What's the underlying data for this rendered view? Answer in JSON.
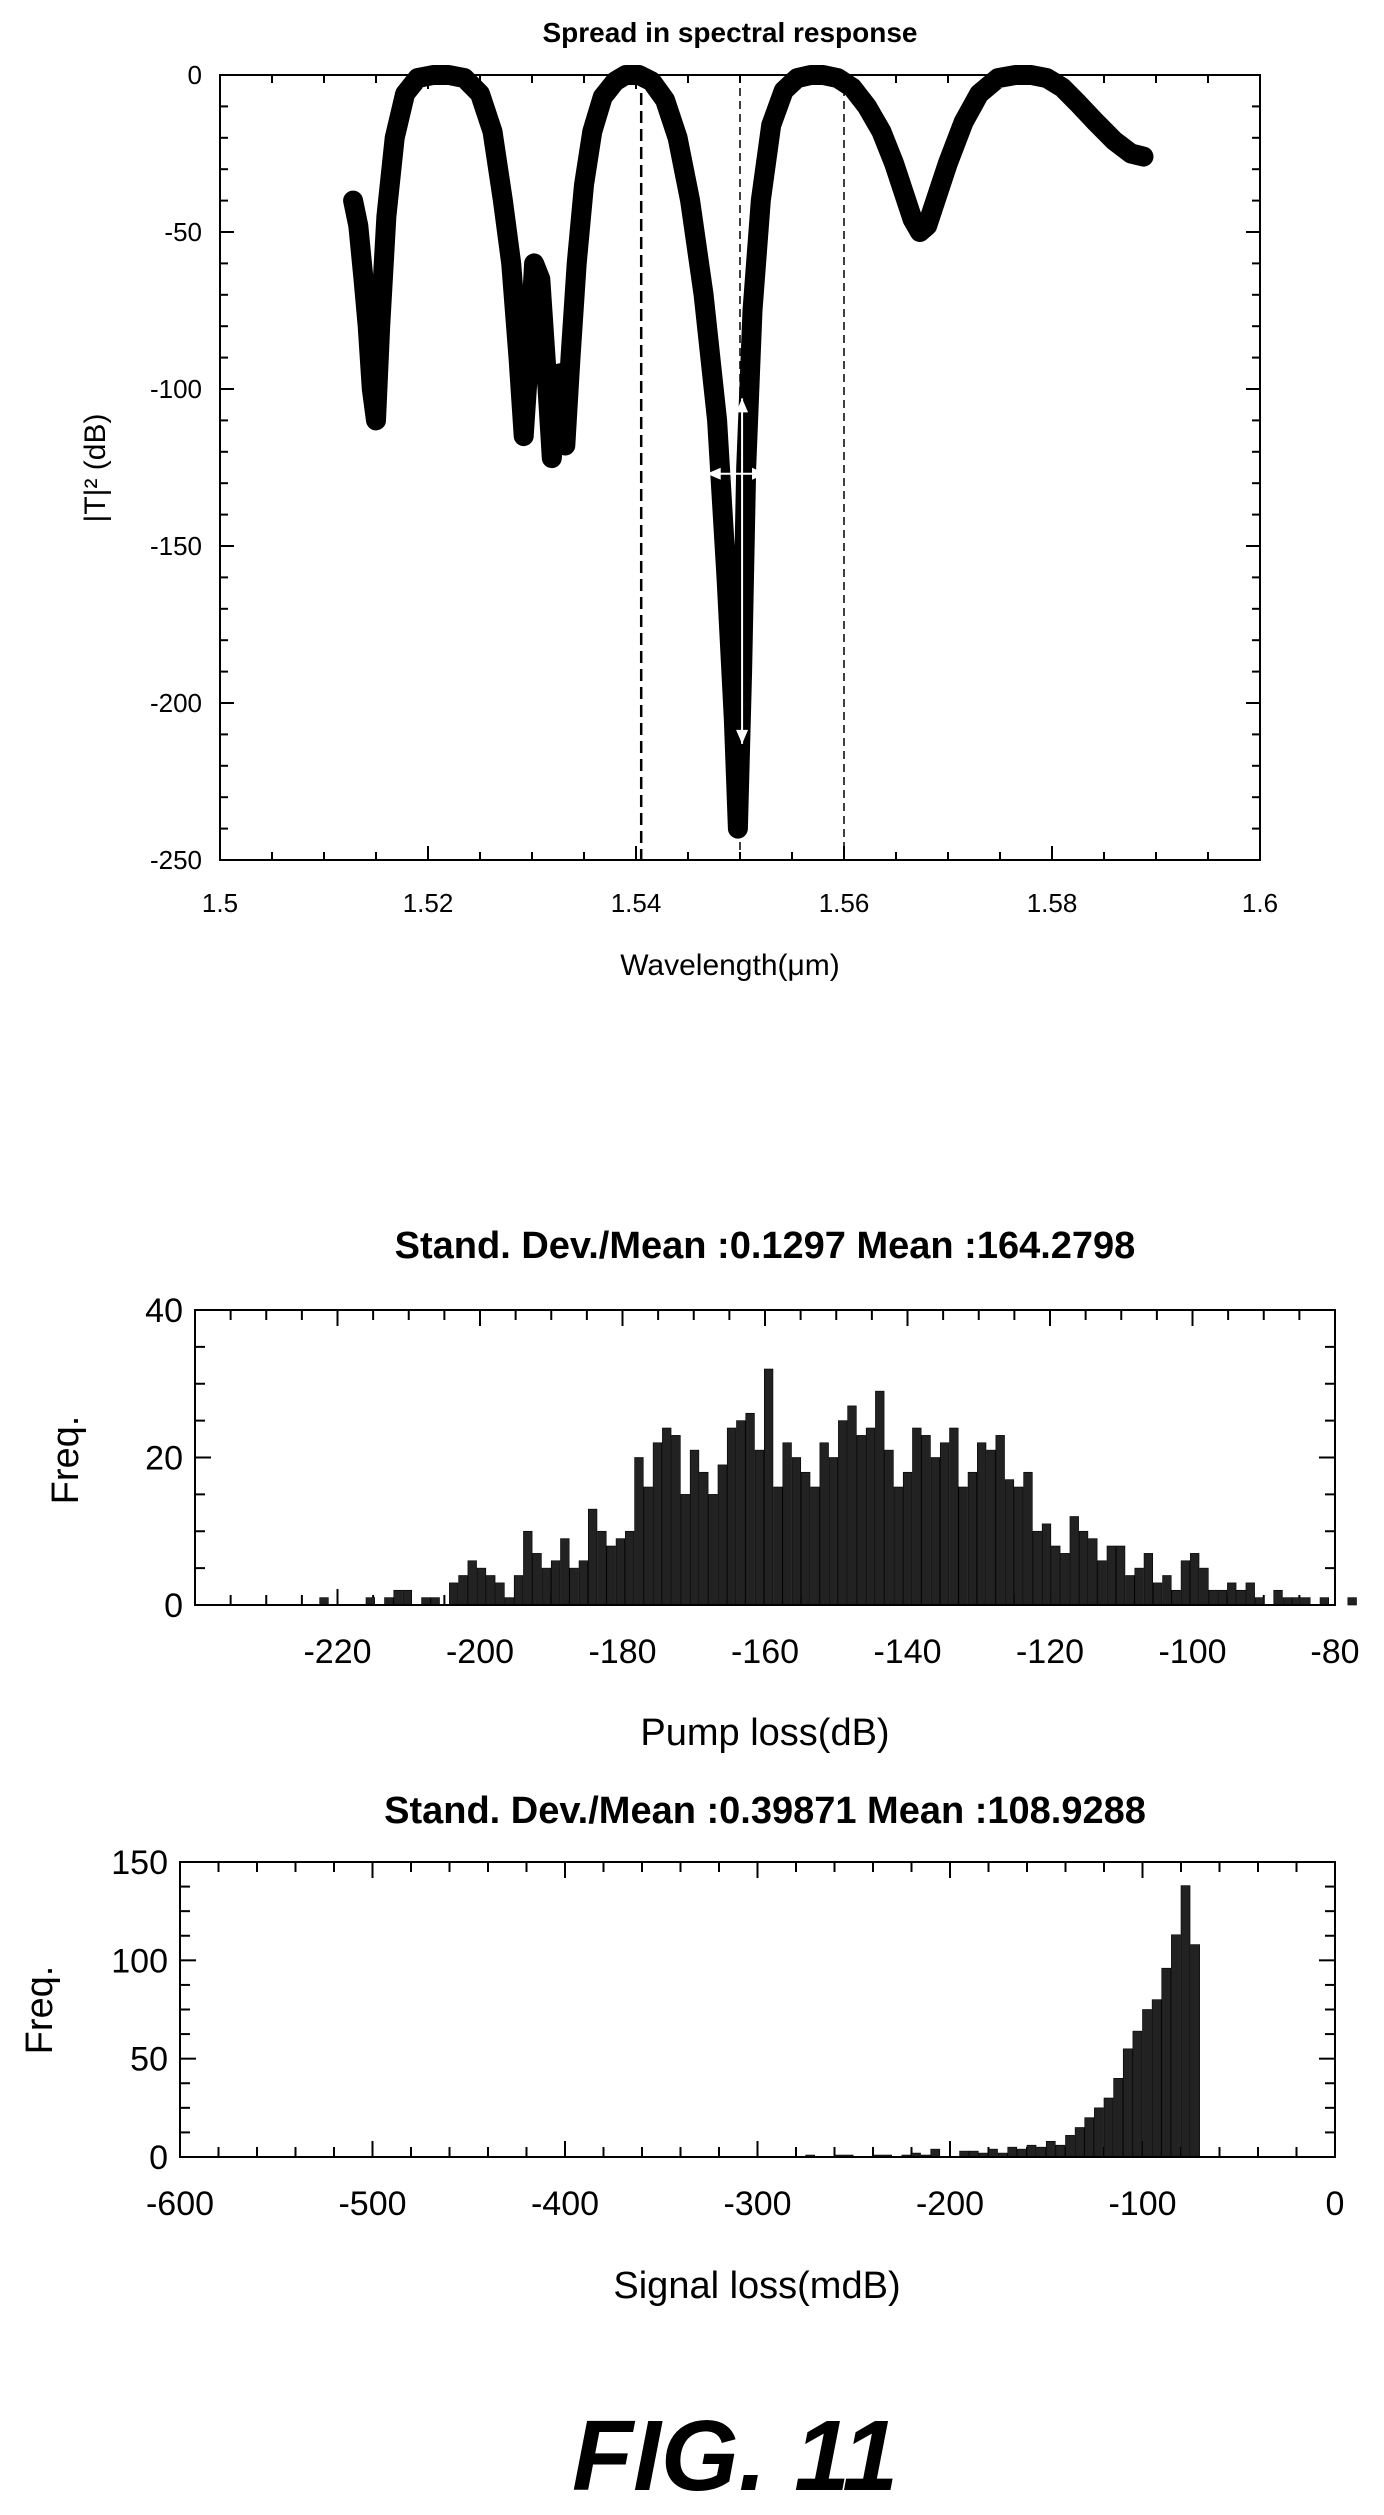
{
  "figure_label": "FIG. 11",
  "chart_data": [
    {
      "type": "line",
      "title": "Spread in spectral response",
      "xlabel": "Wavelength(μm)",
      "ylabel": "|T|² (dB)",
      "xlim": [
        1.5,
        1.6
      ],
      "ylim": [
        -250,
        0
      ],
      "xticks": [
        1.5,
        1.52,
        1.54,
        1.56,
        1.58,
        1.6
      ],
      "yticks": [
        0,
        -50,
        -100,
        -150,
        -200,
        -250
      ],
      "xtick_labels": [
        "1.5",
        "1.52",
        "1.54",
        "1.56",
        "1.58",
        "1.6"
      ],
      "ytick_labels": [
        "0",
        "-50",
        "-100",
        "-150",
        "-200",
        "-250"
      ],
      "grid": false,
      "series": [
        {
          "x": [
            1.5128,
            1.5133,
            1.5138,
            1.5142,
            1.5146,
            1.515,
            1.5154,
            1.516,
            1.5168,
            1.5178,
            1.519,
            1.5205,
            1.522,
            1.5235,
            1.525,
            1.5262,
            1.5272,
            1.528,
            1.5287,
            1.5292,
            1.5297,
            1.5302,
            1.5308,
            1.5314,
            1.5319,
            1.5323,
            1.5327,
            1.5332,
            1.5337,
            1.5343,
            1.535,
            1.5358,
            1.5368,
            1.538,
            1.539,
            1.5403,
            1.5415,
            1.5428,
            1.544,
            1.5452,
            1.5465,
            1.5478,
            1.5487,
            1.5494,
            1.5498,
            1.5502,
            1.5506,
            1.5512,
            1.552,
            1.553,
            1.5542,
            1.5555,
            1.5568,
            1.558,
            1.5594,
            1.5608,
            1.5622,
            1.5636,
            1.5648,
            1.5658,
            1.5666,
            1.5673,
            1.568,
            1.5688,
            1.57,
            1.5715,
            1.573,
            1.5748,
            1.5765,
            1.578,
            1.5795,
            1.581,
            1.5825,
            1.5842,
            1.586,
            1.5876,
            1.5888
          ],
          "y": [
            -40,
            -48,
            -65,
            -80,
            -100,
            -110,
            -80,
            -45,
            -20,
            -6,
            -1,
            0,
            0,
            -1,
            -6,
            -18,
            -40,
            -60,
            -90,
            -115,
            -90,
            -60,
            -65,
            -95,
            -122,
            -105,
            -95,
            -118,
            -90,
            -60,
            -35,
            -18,
            -7,
            -2,
            0,
            0,
            -2,
            -8,
            -20,
            -40,
            -70,
            -110,
            -160,
            -205,
            -240,
            -190,
            -125,
            -75,
            -40,
            -16,
            -5,
            -1,
            0,
            0,
            -1,
            -4,
            -10,
            -18,
            -28,
            -38,
            -46,
            -50,
            -48,
            -40,
            -28,
            -15,
            -6,
            -1,
            0,
            0,
            -1,
            -4,
            -9,
            -15,
            -21,
            -25,
            -26
          ]
        }
      ],
      "reference_lines_x": [
        1.5405,
        1.55,
        1.56
      ],
      "annotations": [
        "double-headed arrows near 1.55 μm showing wavelength and depth spread"
      ]
    },
    {
      "type": "bar",
      "title": "Stand. Dev./Mean :0.1297   Mean :164.2798",
      "xlabel": "Pump loss(dB)",
      "ylabel": "Freq.",
      "xlim": [
        -240,
        -80
      ],
      "ylim": [
        0,
        40
      ],
      "xticks": [
        -220,
        -200,
        -180,
        -160,
        -140,
        -120,
        -100,
        -80
      ],
      "yticks": [
        0,
        20,
        40
      ],
      "xtick_labels": [
        "-220",
        "-200",
        "-180",
        "-160",
        "-140",
        "-120",
        "-100",
        "-80"
      ],
      "ytick_labels": [
        "0",
        "20",
        "40"
      ],
      "bin_width": 1.3,
      "bins_start": -222.5,
      "values": [
        1,
        0,
        0,
        0,
        0,
        1,
        0,
        1,
        2,
        2,
        0,
        1,
        1,
        0,
        3,
        4,
        6,
        5,
        4,
        3,
        1,
        4,
        10,
        7,
        5,
        6,
        9,
        5,
        6,
        13,
        10,
        8,
        9,
        10,
        20,
        16,
        22,
        24,
        23,
        15,
        21,
        18,
        15,
        19,
        24,
        25,
        26,
        21,
        32,
        16,
        22,
        20,
        18,
        16,
        22,
        20,
        25,
        27,
        23,
        24,
        29,
        21,
        16,
        18,
        24,
        23,
        20,
        22,
        24,
        16,
        18,
        22,
        21,
        23,
        17,
        16,
        18,
        10,
        11,
        8,
        7,
        12,
        10,
        9,
        6,
        8,
        8,
        4,
        5,
        7,
        3,
        4,
        2,
        6,
        7,
        5,
        2,
        2,
        3,
        2,
        3,
        1,
        0,
        2,
        1,
        1,
        1,
        0,
        1,
        0,
        0,
        1,
        0,
        0,
        0,
        0,
        1
      ],
      "grid": false
    },
    {
      "type": "bar",
      "title": "Stand. Dev./Mean :0.39871  Mean :108.9288",
      "xlabel": "Signal loss(mdB)",
      "ylabel": "Freq.",
      "xlim": [
        -600,
        0
      ],
      "ylim": [
        0,
        150
      ],
      "xticks": [
        -600,
        -500,
        -400,
        -300,
        -200,
        -100,
        0
      ],
      "yticks": [
        0,
        50,
        100,
        150
      ],
      "xtick_labels": [
        "-600",
        "-500",
        "-400",
        "-300",
        "-200",
        "-100",
        "0"
      ],
      "ytick_labels": [
        "0",
        "50",
        "100",
        "150"
      ],
      "bin_width": 5,
      "bins_start": -275,
      "values": [
        1,
        0,
        0,
        1,
        1,
        0,
        0,
        1,
        1,
        0,
        1,
        2,
        1,
        4,
        0,
        0,
        3,
        3,
        2,
        4,
        2,
        5,
        4,
        6,
        5,
        8,
        6,
        11,
        15,
        20,
        25,
        30,
        40,
        55,
        64,
        75,
        80,
        96,
        113,
        138,
        108
      ],
      "grid": false
    }
  ]
}
